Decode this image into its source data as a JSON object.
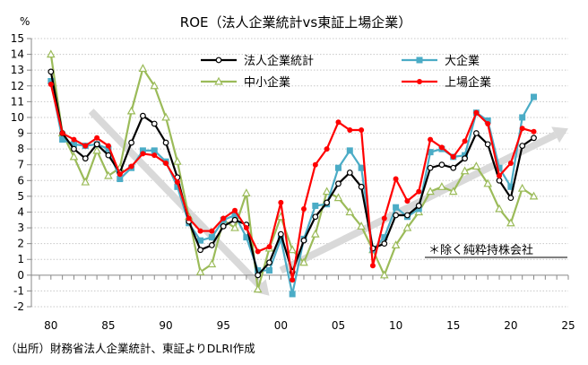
{
  "chart_data": {
    "type": "line",
    "title": "ROE（法人企業統計vs東証上場企業）",
    "ylabel": "%",
    "xlim": [
      1978.3,
      2025
    ],
    "ylim": [
      -2,
      15
    ],
    "yticks": [
      -2,
      -1,
      0,
      1,
      2,
      3,
      4,
      5,
      6,
      7,
      8,
      9,
      10,
      11,
      12,
      13,
      14,
      15
    ],
    "xticks": [
      1980,
      1985,
      1990,
      1995,
      2000,
      2005,
      2010,
      2015,
      2020,
      2025
    ],
    "xtick_labels": [
      "80",
      "85",
      "90",
      "95",
      "00",
      "05",
      "10",
      "15",
      "20",
      "25"
    ],
    "grid": true,
    "legend_placement": "top",
    "x": [
      1980,
      1981,
      1982,
      1983,
      1984,
      1985,
      1986,
      1987,
      1988,
      1989,
      1990,
      1991,
      1992,
      1993,
      1994,
      1995,
      1996,
      1997,
      1998,
      1999,
      2000,
      2001,
      2002,
      2003,
      2004,
      2005,
      2006,
      2007,
      2008,
      2009,
      2010,
      2011,
      2012,
      2013,
      2014,
      2015,
      2016,
      2017,
      2018,
      2019,
      2020,
      2021,
      2022
    ],
    "series": [
      {
        "name": "法人企業統計",
        "color": "#000000",
        "marker": "circle-open",
        "values": [
          12.9,
          9.0,
          8.0,
          7.4,
          8.3,
          7.6,
          6.5,
          8.4,
          10.1,
          9.6,
          8.4,
          6.2,
          3.4,
          1.6,
          1.9,
          3.1,
          3.5,
          3.2,
          0.0,
          0.8,
          2.6,
          0.2,
          2.2,
          3.7,
          4.6,
          5.8,
          6.5,
          5.6,
          1.7,
          2.0,
          3.8,
          3.8,
          4.4,
          6.8,
          7.0,
          6.8,
          7.4,
          9.0,
          8.3,
          6.0,
          4.9,
          8.2,
          8.7
        ]
      },
      {
        "name": "大企業",
        "color": "#4BACC6",
        "marker": "square",
        "values": [
          12.3,
          8.6,
          8.3,
          8.2,
          8.3,
          8.0,
          6.1,
          6.8,
          7.9,
          7.9,
          7.2,
          5.6,
          3.3,
          2.2,
          2.4,
          3.5,
          3.8,
          2.4,
          0.3,
          0.3,
          2.3,
          -1.2,
          2.3,
          4.4,
          4.5,
          6.8,
          7.9,
          6.8,
          1.6,
          2.4,
          4.3,
          3.7,
          4.2,
          7.8,
          8.0,
          7.5,
          7.6,
          10.3,
          9.8,
          6.8,
          5.6,
          10.0,
          11.3
        ]
      },
      {
        "name": "中小企業",
        "color": "#9BBB59",
        "marker": "triangle-open",
        "values": [
          14.0,
          9.0,
          7.5,
          5.9,
          7.9,
          6.3,
          6.8,
          10.4,
          13.1,
          12.0,
          10.0,
          7.2,
          3.7,
          0.2,
          0.7,
          3.5,
          3.0,
          5.2,
          -0.9,
          1.7,
          3.7,
          1.6,
          0.8,
          2.6,
          5.3,
          4.9,
          4.0,
          3.1,
          1.6,
          0.0,
          1.9,
          3.0,
          4.0,
          5.3,
          5.6,
          5.3,
          6.6,
          6.9,
          5.8,
          4.2,
          3.3,
          5.5,
          5.0
        ]
      },
      {
        "name": "上場企業",
        "color": "#FF0000",
        "marker": "circle",
        "values": [
          12.1,
          9.0,
          8.6,
          8.2,
          8.7,
          8.2,
          6.4,
          6.9,
          7.7,
          7.6,
          7.1,
          5.9,
          3.6,
          2.8,
          2.8,
          3.6,
          4.1,
          3.0,
          1.5,
          1.8,
          4.6,
          -0.3,
          4.2,
          7.0,
          8.0,
          9.7,
          9.2,
          9.2,
          0.6,
          3.6,
          6.1,
          4.7,
          5.3,
          8.6,
          8.1,
          7.5,
          8.5,
          10.3,
          9.6,
          6.3,
          7.1,
          9.3,
          9.1
        ]
      }
    ],
    "trend_arrows": [
      {
        "from": [
          1983.5,
          10.4
        ],
        "to": [
          1999,
          -1.3
        ],
        "color": "#D9D9D9"
      },
      {
        "from": [
          2000,
          0.3
        ],
        "to": [
          2025,
          9.3
        ],
        "color": "#D9D9D9"
      }
    ],
    "annotation": "＊除く純粋持株会社"
  },
  "source": "（出所）財務省法人企業統計、東証よりDLRI作成"
}
